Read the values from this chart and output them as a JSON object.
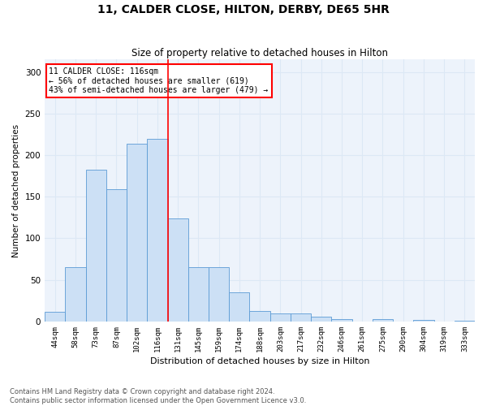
{
  "title": "11, CALDER CLOSE, HILTON, DERBY, DE65 5HR",
  "subtitle": "Size of property relative to detached houses in Hilton",
  "xlabel": "Distribution of detached houses by size in Hilton",
  "ylabel": "Number of detached properties",
  "categories": [
    "44sqm",
    "58sqm",
    "73sqm",
    "87sqm",
    "102sqm",
    "116sqm",
    "131sqm",
    "145sqm",
    "159sqm",
    "174sqm",
    "188sqm",
    "203sqm",
    "217sqm",
    "232sqm",
    "246sqm",
    "261sqm",
    "275sqm",
    "290sqm",
    "304sqm",
    "319sqm",
    "333sqm"
  ],
  "values": [
    12,
    65,
    182,
    159,
    214,
    220,
    124,
    65,
    65,
    35,
    13,
    10,
    10,
    6,
    3,
    0,
    3,
    0,
    2,
    0,
    1
  ],
  "bar_color": "#cce0f5",
  "bar_edgecolor": "#5b9bd5",
  "vline_x": 5,
  "vline_color": "red",
  "annotation_text": "11 CALDER CLOSE: 116sqm\n← 56% of detached houses are smaller (619)\n43% of semi-detached houses are larger (479) →",
  "annotation_box_color": "white",
  "annotation_box_edgecolor": "red",
  "ylim": [
    0,
    315
  ],
  "yticks": [
    0,
    50,
    100,
    150,
    200,
    250,
    300
  ],
  "grid_color": "#dce8f5",
  "background_color": "#edf3fb",
  "footer_line1": "Contains HM Land Registry data © Crown copyright and database right 2024.",
  "footer_line2": "Contains public sector information licensed under the Open Government Licence v3.0."
}
